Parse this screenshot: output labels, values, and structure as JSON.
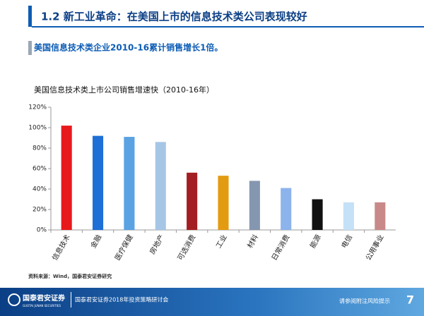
{
  "header": {
    "title": "1.2 新工业革命：在美国上市的信息技术类公司表现较好"
  },
  "subtitle": "美国信息技术类企业2010-16累计销售增长1倍。",
  "chart_data": {
    "type": "bar",
    "title": "美国信息技术类上市公司销售增速快（2010-16年）",
    "categories": [
      "信息技术",
      "金融",
      "医疗保健",
      "房地产",
      "可选消费",
      "工业",
      "材料",
      "日常消费",
      "能源",
      "电信",
      "公用事业"
    ],
    "values": [
      102,
      92,
      91,
      86,
      56,
      53,
      48,
      41,
      30,
      27,
      27
    ],
    "colors": [
      "#e8191c",
      "#1e6fd6",
      "#5aa2e2",
      "#a6c6e6",
      "#a31e22",
      "#e39b12",
      "#8596b0",
      "#8cb3ec",
      "#111111",
      "#c5e1f7",
      "#c98989"
    ],
    "ylim": [
      0,
      120
    ],
    "yticks": [
      {
        "value": 0,
        "label": "0%"
      },
      {
        "value": 20,
        "label": "20%"
      },
      {
        "value": 40,
        "label": "40%"
      },
      {
        "value": 60,
        "label": "60%"
      },
      {
        "value": 80,
        "label": "80%"
      },
      {
        "value": 100,
        "label": "100%"
      },
      {
        "value": 120,
        "label": "120%"
      }
    ],
    "grid": false
  },
  "source": "资料来源：Wind，国泰君安证券研究",
  "footer": {
    "logo": "国泰君安证券",
    "logo_en": "GUOTAI JUNAN SECURITIES",
    "event": "国泰君安证券2018年投资策略研讨会",
    "notice": "请参阅附注风险提示",
    "page_number": "7"
  }
}
